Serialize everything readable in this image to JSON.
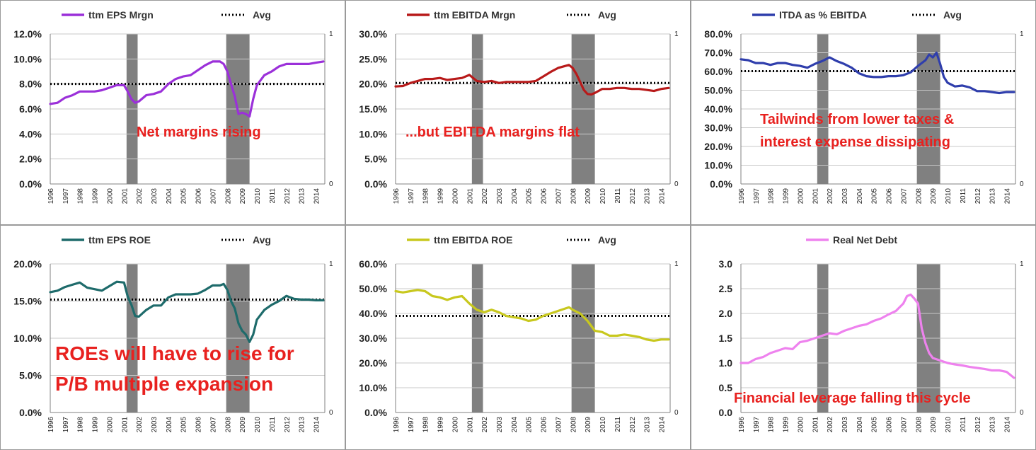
{
  "years": [
    "1996",
    "1997",
    "1998",
    "1999",
    "2000",
    "2001",
    "2002",
    "2003",
    "2004",
    "2005",
    "2006",
    "2007",
    "2008",
    "2009",
    "2010",
    "2011",
    "2012",
    "2013",
    "2014"
  ],
  "avg_label": "Avg",
  "chart_data": [
    {
      "type": "line",
      "legend": "ttm EPS Mrgn",
      "color": "#9b30d9",
      "y_format": "pct1",
      "ylim": [
        0,
        12
      ],
      "y_ticks": [
        0,
        2,
        4,
        6,
        8,
        10,
        12
      ],
      "secondary_ticks": [
        "0",
        "1"
      ],
      "recessions": [
        [
          2001.17,
          2001.92
        ],
        [
          2007.92,
          2009.5
        ]
      ],
      "avg": 8.0,
      "annotation": "Net margins rising",
      "x": [
        1996,
        1996.5,
        1997,
        1997.5,
        1998,
        1998.5,
        1999,
        1999.5,
        2000,
        2000.5,
        2001,
        2001.25,
        2001.5,
        2001.75,
        2002,
        2002.5,
        2003,
        2003.5,
        2004,
        2004.5,
        2005,
        2005.5,
        2006,
        2006.5,
        2007,
        2007.5,
        2007.75,
        2008,
        2008.25,
        2008.5,
        2008.75,
        2009,
        2009.25,
        2009.5,
        2009.75,
        2010,
        2010.5,
        2011,
        2011.5,
        2012,
        2012.5,
        2013,
        2013.5,
        2014,
        2014.5
      ],
      "y": [
        6.4,
        6.5,
        6.9,
        7.1,
        7.4,
        7.4,
        7.4,
        7.5,
        7.7,
        7.9,
        7.9,
        7.4,
        6.8,
        6.5,
        6.6,
        7.1,
        7.2,
        7.4,
        8.0,
        8.4,
        8.6,
        8.7,
        9.1,
        9.5,
        9.8,
        9.8,
        9.6,
        9.0,
        8.0,
        7.0,
        5.6,
        5.7,
        5.6,
        5.4,
        6.8,
        7.9,
        8.7,
        9.0,
        9.4,
        9.6,
        9.6,
        9.6,
        9.6,
        9.7,
        9.8
      ]
    },
    {
      "type": "line",
      "legend": "ttm EBITDA Mrgn",
      "color": "#b81a1a",
      "y_format": "pct1",
      "ylim": [
        0,
        30
      ],
      "y_ticks": [
        0,
        5,
        10,
        15,
        20,
        25,
        30
      ],
      "secondary_ticks": [
        "0",
        "1"
      ],
      "recessions": [
        [
          2001.17,
          2001.92
        ],
        [
          2007.92,
          2009.5
        ]
      ],
      "avg": 20.2,
      "annotation": "...but EBITDA margins flat",
      "x": [
        1996,
        1996.5,
        1997,
        1997.5,
        1998,
        1998.5,
        1999,
        1999.5,
        2000,
        2000.5,
        2001,
        2001.5,
        2002,
        2002.5,
        2003,
        2003.5,
        2004,
        2004.5,
        2005,
        2005.5,
        2006,
        2006.5,
        2007,
        2007.5,
        2007.75,
        2008,
        2008.25,
        2008.5,
        2008.75,
        2009,
        2009.25,
        2009.5,
        2010,
        2010.5,
        2011,
        2011.5,
        2012,
        2012.5,
        2013,
        2013.5,
        2014,
        2014.5
      ],
      "y": [
        19.5,
        19.6,
        20.2,
        20.6,
        21.0,
        21.0,
        21.2,
        20.8,
        21.0,
        21.2,
        21.8,
        20.6,
        20.4,
        20.6,
        20.2,
        20.4,
        20.4,
        20.4,
        20.4,
        20.6,
        21.5,
        22.4,
        23.2,
        23.6,
        23.8,
        23.2,
        22.0,
        20.4,
        18.8,
        18.0,
        17.9,
        18.2,
        19.0,
        19.0,
        19.2,
        19.2,
        19.0,
        19.0,
        18.8,
        18.6,
        19.0,
        19.2
      ]
    },
    {
      "type": "line",
      "legend": "ITDA as % EBITDA",
      "color": "#2f3eac",
      "y_format": "pct1",
      "ylim": [
        0,
        80
      ],
      "y_ticks": [
        0,
        10,
        20,
        30,
        40,
        50,
        60,
        70,
        80
      ],
      "secondary_ticks": [
        "0",
        "1"
      ],
      "recessions": [
        [
          2001.17,
          2001.92
        ],
        [
          2007.92,
          2009.5
        ]
      ],
      "avg": 60.2,
      "annotation_lines": [
        "Tailwinds from lower taxes &",
        "interest expense dissipating"
      ],
      "x": [
        1996,
        1996.5,
        1997,
        1997.5,
        1998,
        1998.5,
        1999,
        1999.5,
        2000,
        2000.5,
        2001,
        2001.5,
        2002,
        2002.5,
        2003,
        2003.5,
        2004,
        2004.5,
        2005,
        2005.5,
        2006,
        2006.5,
        2007,
        2007.5,
        2008,
        2008.5,
        2008.75,
        2009,
        2009.25,
        2009.5,
        2009.75,
        2010,
        2010.5,
        2011,
        2011.5,
        2012,
        2012.5,
        2013,
        2013.5,
        2014,
        2014.5
      ],
      "y": [
        66.5,
        66.0,
        64.5,
        64.5,
        63.5,
        64.5,
        64.5,
        63.5,
        63.0,
        62.0,
        64.0,
        65.5,
        67.5,
        65.5,
        64.0,
        62.0,
        59.0,
        57.5,
        57.0,
        57.0,
        57.5,
        57.5,
        58.0,
        59.5,
        63.0,
        66.0,
        69.0,
        67.5,
        70.0,
        64.0,
        57.0,
        54.0,
        52.0,
        52.5,
        51.5,
        49.5,
        49.5,
        49.0,
        48.5,
        49.0,
        49.0
      ]
    },
    {
      "type": "line",
      "legend": "ttm EPS ROE",
      "color": "#1e6b6b",
      "y_format": "pct1",
      "ylim": [
        0,
        20
      ],
      "y_ticks": [
        0,
        5,
        10,
        15,
        20
      ],
      "secondary_ticks": [
        "0",
        "1"
      ],
      "recessions": [
        [
          2001.17,
          2001.92
        ],
        [
          2007.92,
          2009.5
        ]
      ],
      "avg": 15.2,
      "annotation_lines": [
        "ROEs will have to rise for",
        "P/B multiple expansion"
      ],
      "x": [
        1996,
        1996.5,
        1997,
        1997.5,
        1998,
        1998.5,
        1999,
        1999.5,
        2000,
        2000.5,
        2001,
        2001.25,
        2001.5,
        2001.75,
        2002,
        2002.5,
        2003,
        2003.5,
        2004,
        2004.5,
        2005,
        2005.5,
        2006,
        2006.5,
        2007,
        2007.5,
        2007.75,
        2008,
        2008.25,
        2008.5,
        2008.75,
        2009,
        2009.25,
        2009.5,
        2009.75,
        2010,
        2010.5,
        2011,
        2011.5,
        2012,
        2012.5,
        2013,
        2013.5,
        2014,
        2014.5
      ],
      "y": [
        16.2,
        16.4,
        16.9,
        17.2,
        17.5,
        16.8,
        16.6,
        16.4,
        17.0,
        17.6,
        17.5,
        15.6,
        14.5,
        13.0,
        12.9,
        13.8,
        14.4,
        14.4,
        15.5,
        15.9,
        15.9,
        15.9,
        16.0,
        16.5,
        17.1,
        17.1,
        17.3,
        16.5,
        15.0,
        14.0,
        12.0,
        11.0,
        10.5,
        9.5,
        10.5,
        12.5,
        13.8,
        14.5,
        15.0,
        15.7,
        15.3,
        15.2,
        15.2,
        15.1,
        15.1
      ]
    },
    {
      "type": "line",
      "legend": "ttm EBITDA ROE",
      "color": "#c8c81e",
      "y_format": "pct1",
      "ylim": [
        0,
        60
      ],
      "y_ticks": [
        0,
        10,
        20,
        30,
        40,
        50,
        60
      ],
      "secondary_ticks": [
        "0",
        "1"
      ],
      "recessions": [
        [
          2001.17,
          2001.92
        ],
        [
          2007.92,
          2009.5
        ]
      ],
      "avg": 39.0,
      "x": [
        1996,
        1996.5,
        1997,
        1997.5,
        1998,
        1998.5,
        1999,
        1999.5,
        2000,
        2000.5,
        2001,
        2001.5,
        2002,
        2002.5,
        2003,
        2003.5,
        2004,
        2004.5,
        2005,
        2005.5,
        2006,
        2006.5,
        2007,
        2007.5,
        2007.75,
        2008,
        2008.5,
        2009,
        2009.5,
        2010,
        2010.5,
        2011,
        2011.5,
        2012,
        2012.5,
        2013,
        2013.5,
        2014,
        2014.5
      ],
      "y": [
        49.0,
        48.5,
        49.0,
        49.5,
        49.0,
        47.0,
        46.5,
        45.5,
        46.5,
        47.0,
        44.0,
        41.5,
        40.5,
        41.5,
        40.5,
        39.0,
        38.5,
        38.0,
        37.0,
        37.5,
        39.0,
        40.0,
        41.0,
        42.0,
        42.5,
        41.5,
        40.0,
        37.0,
        33.0,
        32.5,
        31.0,
        31.0,
        31.5,
        31.0,
        30.5,
        29.5,
        29.0,
        29.5,
        29.5
      ]
    },
    {
      "type": "line",
      "legend": "Real Net Debt",
      "color": "#ee82ee",
      "y_format": "dec1",
      "ylim": [
        0,
        3
      ],
      "y_ticks": [
        0,
        0.5,
        1.0,
        1.5,
        2.0,
        2.5,
        3.0
      ],
      "secondary_ticks": [
        "0",
        "1"
      ],
      "recessions": [
        [
          2001.17,
          2001.92
        ],
        [
          2007.92,
          2009.5
        ]
      ],
      "annotation": "Financial leverage falling this cycle",
      "x": [
        1996,
        1996.5,
        1997,
        1997.5,
        1998,
        1998.5,
        1999,
        1999.5,
        2000,
        2000.5,
        2001,
        2001.5,
        2002,
        2002.5,
        2003,
        2003.5,
        2004,
        2004.5,
        2005,
        2005.5,
        2006,
        2006.5,
        2007,
        2007.25,
        2007.5,
        2007.75,
        2008,
        2008.25,
        2008.5,
        2008.75,
        2009,
        2009.5,
        2010,
        2010.5,
        2011,
        2011.5,
        2012,
        2012.5,
        2013,
        2013.5,
        2014,
        2014.5
      ],
      "y": [
        1.0,
        1.0,
        1.08,
        1.12,
        1.2,
        1.25,
        1.3,
        1.28,
        1.42,
        1.45,
        1.5,
        1.55,
        1.6,
        1.58,
        1.65,
        1.7,
        1.75,
        1.78,
        1.85,
        1.9,
        1.98,
        2.05,
        2.2,
        2.35,
        2.38,
        2.3,
        2.2,
        1.7,
        1.4,
        1.2,
        1.1,
        1.05,
        1.0,
        0.97,
        0.95,
        0.92,
        0.9,
        0.88,
        0.85,
        0.85,
        0.82,
        0.7
      ]
    }
  ]
}
